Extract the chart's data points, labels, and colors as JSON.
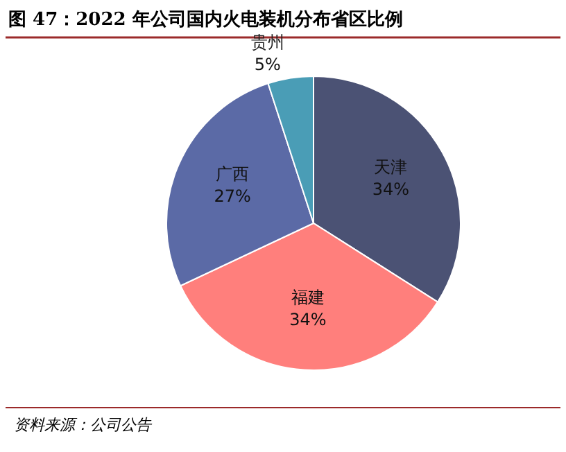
{
  "chart_data": {
    "type": "pie",
    "title": "图 47：2022 年公司国内火电装机分布省区比例",
    "categories": [
      "天津",
      "福建",
      "广西",
      "贵州"
    ],
    "values": [
      34,
      34,
      27,
      5
    ],
    "colors": [
      "#4b5274",
      "#ff7f7c",
      "#5b6aa6",
      "#4a9db6"
    ],
    "value_labels": [
      "34%",
      "34%",
      "27%",
      "5%"
    ],
    "annotations": [
      "资料来源：公司公告"
    ]
  }
}
